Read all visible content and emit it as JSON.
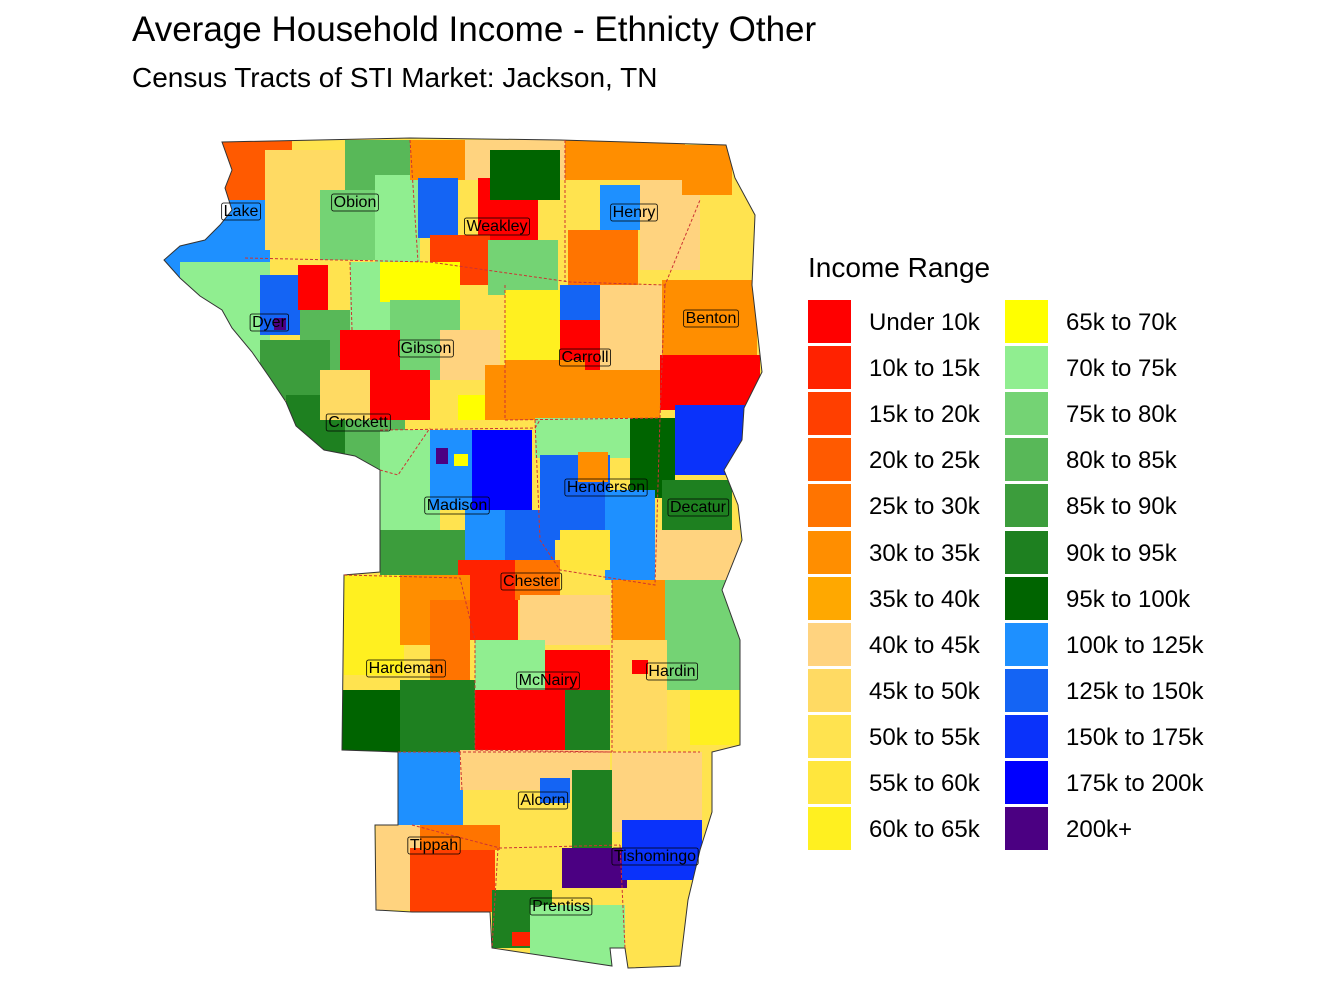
{
  "title": "Average Household Income - Ethnicty Other",
  "subtitle": "Census Tracts of STI Market: Jackson, TN",
  "legend": {
    "title": "Income Range",
    "items": [
      {
        "label": "Under 10k",
        "color": "#FF0000"
      },
      {
        "label": "10k to 15k",
        "color": "#FF2200"
      },
      {
        "label": "15k to 20k",
        "color": "#FF3F00"
      },
      {
        "label": "20k to 25k",
        "color": "#FF5A00"
      },
      {
        "label": "25k to 30k",
        "color": "#FF7400"
      },
      {
        "label": "30k to 35k",
        "color": "#FF8E00"
      },
      {
        "label": "35k to 40k",
        "color": "#FFA800"
      },
      {
        "label": "40k to 45k",
        "color": "#FFD37F"
      },
      {
        "label": "45k to 50k",
        "color": "#FFDA63"
      },
      {
        "label": "50k to 55k",
        "color": "#FFE34F"
      },
      {
        "label": "55k to 60k",
        "color": "#FFE63D"
      },
      {
        "label": "60k to 65k",
        "color": "#FFF020"
      },
      {
        "label": "65k to 70k",
        "color": "#FFFF00"
      },
      {
        "label": "70k to 75k",
        "color": "#90EE90"
      },
      {
        "label": "75k to 80k",
        "color": "#74D374"
      },
      {
        "label": "80k to 85k",
        "color": "#58B858"
      },
      {
        "label": "85k to 90k",
        "color": "#3C9D3C"
      },
      {
        "label": "90k to 95k",
        "color": "#1E8020"
      },
      {
        "label": "95k to 100k",
        "color": "#006400"
      },
      {
        "label": "100k to 125k",
        "color": "#1E90FF"
      },
      {
        "label": "125k to 150k",
        "color": "#1464F4"
      },
      {
        "label": "150k to 175k",
        "color": "#0A32FA"
      },
      {
        "label": "175k to 200k",
        "color": "#0000FF"
      },
      {
        "label": "200k+",
        "color": "#4B0082"
      }
    ]
  },
  "counties": [
    {
      "name": "Lake"
    },
    {
      "name": "Obion"
    },
    {
      "name": "Weakley"
    },
    {
      "name": "Henry"
    },
    {
      "name": "Dyer"
    },
    {
      "name": "Gibson"
    },
    {
      "name": "Carroll"
    },
    {
      "name": "Benton"
    },
    {
      "name": "Crockett"
    },
    {
      "name": "Madison"
    },
    {
      "name": "Henderson"
    },
    {
      "name": "Decatur"
    },
    {
      "name": "Chester"
    },
    {
      "name": "Hardeman"
    },
    {
      "name": "McNairy"
    },
    {
      "name": "Hardin"
    },
    {
      "name": "Alcorn"
    },
    {
      "name": "Tippah"
    },
    {
      "name": "Tishomingo"
    },
    {
      "name": "Prentiss"
    }
  ]
}
